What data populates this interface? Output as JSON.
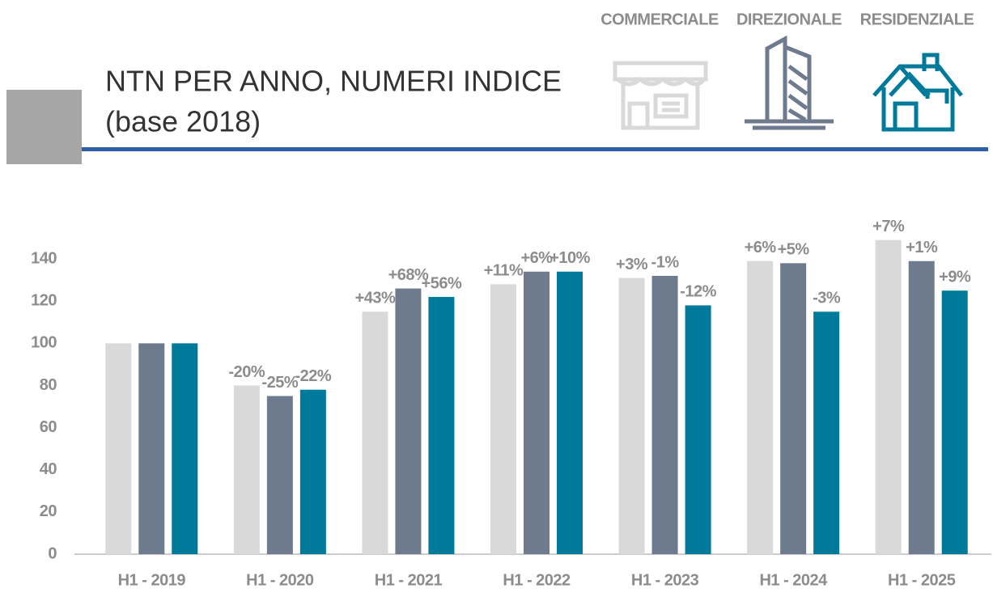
{
  "chart_data": {
    "type": "bar",
    "title": "NTN PER ANNO, NUMERI INDICE",
    "subtitle": "(base 2018)",
    "categories": [
      "H1 - 2019",
      "H1 - 2020",
      "H1 - 2021",
      "H1 - 2022",
      "H1 - 2023",
      "H1 - 2024",
      "H1 - 2025"
    ],
    "series": [
      {
        "name": "COMMERCIALE",
        "color": "#d9d9d9",
        "values": [
          100,
          80,
          115,
          128,
          131,
          139,
          149
        ],
        "change_labels": [
          null,
          "-20%",
          "+43%",
          "+11%",
          "+3%",
          "+6%",
          "+7%"
        ]
      },
      {
        "name": "DIREZIONALE",
        "color": "#6e7b8f",
        "values": [
          100,
          75,
          126,
          134,
          132,
          138,
          139
        ],
        "change_labels": [
          null,
          "-25%",
          "+68%",
          "+6%",
          "-1%",
          "+5%",
          "+1%"
        ]
      },
      {
        "name": "RESIDENZIALE",
        "color": "#007a9a",
        "values": [
          100,
          78,
          122,
          134,
          118,
          115,
          125
        ],
        "change_labels": [
          null,
          "-22%",
          "+56%",
          "+10%",
          "-12%",
          "-3%",
          "+9%"
        ]
      }
    ],
    "ylim": [
      0,
      160
    ],
    "yticks": [
      0,
      20,
      40,
      60,
      80,
      100,
      120,
      140
    ],
    "grid": false
  }
}
